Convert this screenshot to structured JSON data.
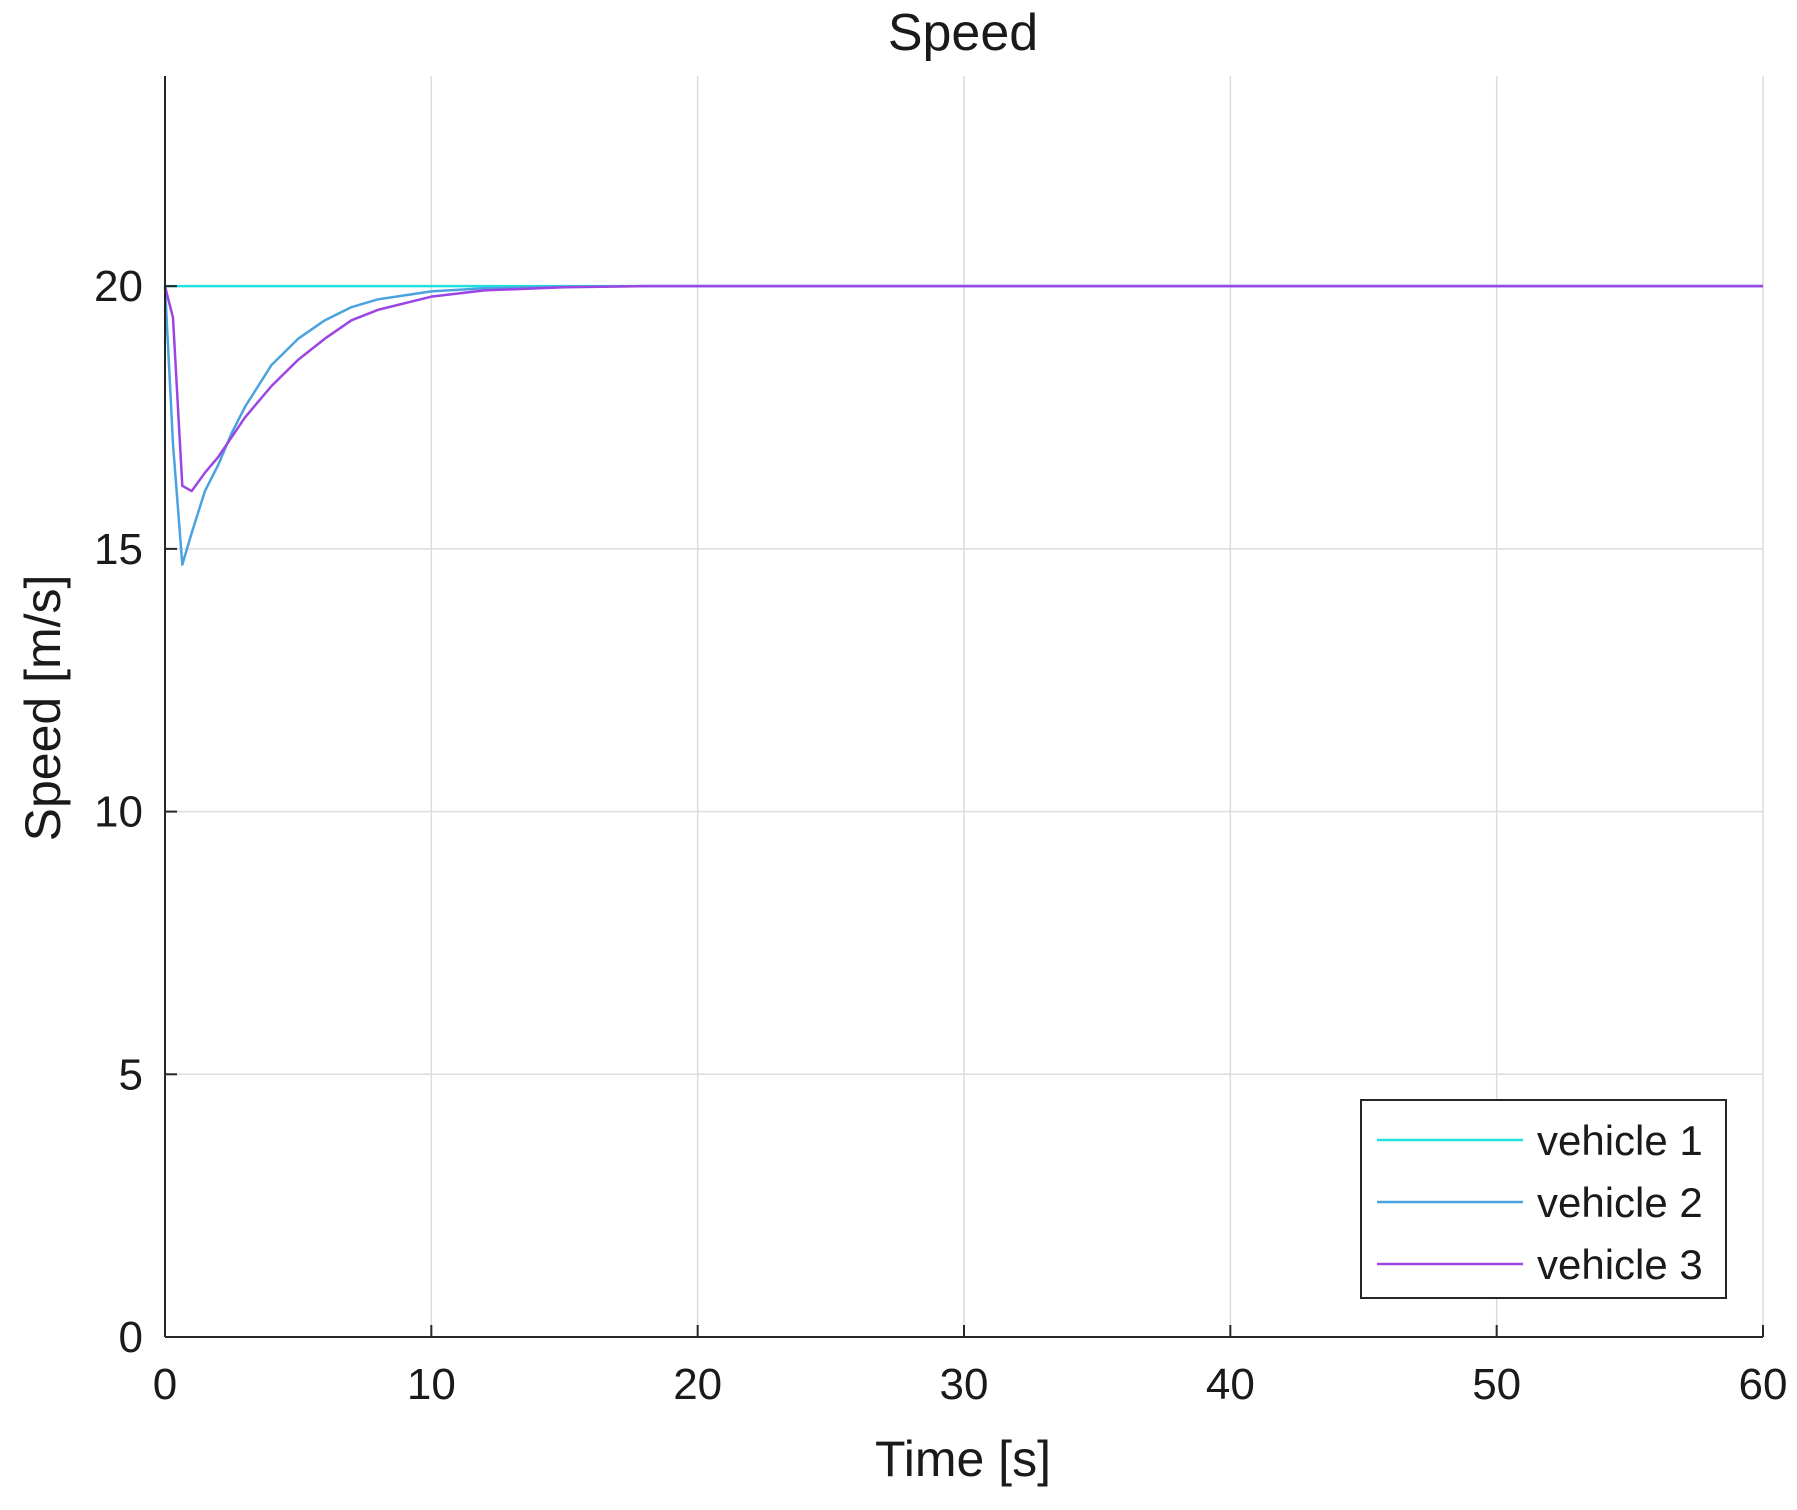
{
  "chart_data": {
    "type": "line",
    "title": "Speed",
    "xlabel": "Time [s]",
    "ylabel": "Speed [m/s]",
    "xlim": [
      0,
      60
    ],
    "ylim": [
      0,
      24
    ],
    "x_ticks": [
      0,
      10,
      20,
      30,
      40,
      50,
      60
    ],
    "y_ticks": [
      0,
      5,
      10,
      15,
      20
    ],
    "grid": true,
    "legend_position": "bottom-right",
    "series": [
      {
        "name": "vehicle 1",
        "color": "#22e0e0",
        "x": [
          0,
          60
        ],
        "y": [
          20,
          20
        ]
      },
      {
        "name": "vehicle 2",
        "color": "#4aa3df",
        "x": [
          0,
          0.3,
          0.65,
          1.0,
          1.5,
          2.0,
          2.5,
          3.0,
          3.5,
          4.0,
          5.0,
          6.0,
          7.0,
          8.0,
          10.0,
          12.0,
          15.0,
          18.0,
          20.0,
          60.0
        ],
        "y": [
          20.0,
          17.0,
          14.7,
          15.3,
          16.1,
          16.6,
          17.2,
          17.7,
          18.1,
          18.5,
          19.0,
          19.35,
          19.6,
          19.75,
          19.9,
          19.96,
          19.99,
          20.0,
          20.0,
          20.0
        ]
      },
      {
        "name": "vehicle 3",
        "color": "#9b45e4",
        "x": [
          0,
          0.3,
          0.65,
          1.0,
          1.5,
          2.0,
          3.0,
          4.0,
          5.0,
          6.0,
          7.0,
          8.0,
          10.0,
          12.0,
          15.0,
          18.0,
          20.0,
          60.0
        ],
        "y": [
          20.0,
          19.4,
          16.2,
          16.1,
          16.45,
          16.75,
          17.5,
          18.1,
          18.6,
          19.0,
          19.35,
          19.55,
          19.8,
          19.92,
          19.98,
          20.0,
          20.0,
          20.0
        ]
      }
    ]
  }
}
